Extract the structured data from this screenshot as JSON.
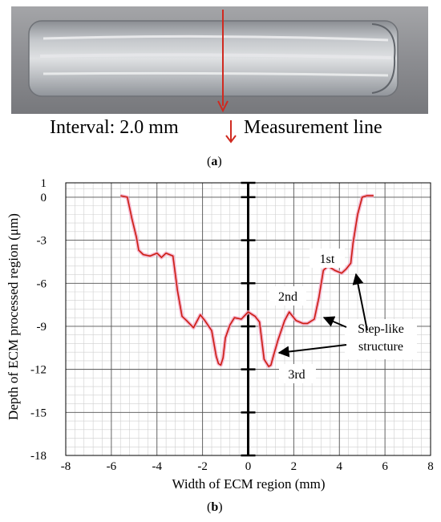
{
  "figure_a": {
    "interval_label": "Interval: 2.0 mm",
    "measurement_label": "Measurement line",
    "caption": "a",
    "colors": {
      "measurement_line": "#d02a20",
      "plate": "#8f9094"
    }
  },
  "figure_b": {
    "caption": "b"
  },
  "chart_data": {
    "type": "line",
    "title": "",
    "xlabel": "Width of ECM region (mm)",
    "ylabel": "Depth of ECM processed region (μm)",
    "xlim": [
      -8,
      8
    ],
    "ylim": [
      -18,
      1
    ],
    "xticks": [
      "-8",
      "-6",
      "-4",
      "-2",
      "0",
      "2",
      "4",
      "6",
      "8"
    ],
    "yticks": [
      "1",
      "0",
      "-3",
      "-6",
      "-9",
      "-12",
      "-15",
      "-18"
    ],
    "minor_grid": true,
    "series": [
      {
        "color": "#cc1d10",
        "x": [
          -5.6,
          -5.3,
          -5.1,
          -4.9,
          -4.8,
          -4.6,
          -4.3,
          -4.0,
          -3.8,
          -3.6,
          -3.3,
          -3.1,
          -2.9,
          -2.7,
          -2.4,
          -2.1,
          -1.9,
          -1.6,
          -1.4,
          -1.3,
          -1.2,
          -1.1,
          -1.0,
          -0.8,
          -0.6,
          -0.3,
          0.0,
          0.3,
          0.5,
          0.7,
          0.9,
          1.0,
          1.1,
          1.3,
          1.6,
          1.8,
          2.1,
          2.4,
          2.6,
          2.9,
          3.1,
          3.3,
          3.5,
          3.8,
          4.1,
          4.3,
          4.5,
          4.6,
          4.8,
          5.0,
          5.2,
          5.5
        ],
        "y": [
          0.1,
          0.0,
          -1.5,
          -2.8,
          -3.7,
          -4.0,
          -4.1,
          -3.9,
          -4.2,
          -3.9,
          -4.1,
          -6.5,
          -8.3,
          -8.6,
          -9.1,
          -8.2,
          -8.6,
          -9.3,
          -11.1,
          -11.6,
          -11.7,
          -11.2,
          -9.8,
          -8.9,
          -8.4,
          -8.5,
          -8.0,
          -8.3,
          -8.7,
          -11.3,
          -11.8,
          -11.7,
          -11.1,
          -10.0,
          -8.6,
          -8.0,
          -8.6,
          -8.8,
          -8.8,
          -8.5,
          -7.0,
          -5.1,
          -4.8,
          -5.1,
          -5.3,
          -5.0,
          -4.6,
          -3.2,
          -1.2,
          0.0,
          0.1,
          0.1
        ]
      }
    ],
    "annotations": [
      "1st",
      "2nd",
      "3rd",
      "Step-like structure"
    ]
  }
}
